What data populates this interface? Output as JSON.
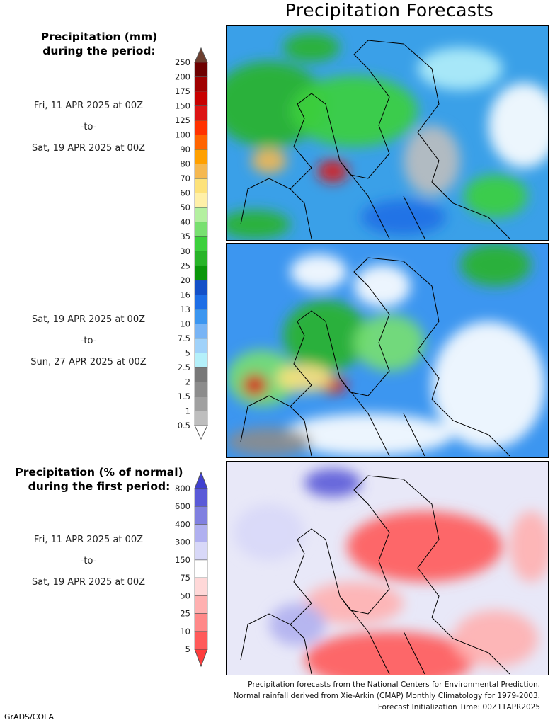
{
  "title": "Precipitation Forecasts",
  "panel1": {
    "header": [
      "Precipitation (mm)",
      "during the period:"
    ],
    "from": "Fri, 11 APR 2025 at 00Z",
    "sep": "-to-",
    "to": "Sat, 19 APR 2025 at 00Z"
  },
  "panel2": {
    "from": "Sat, 19 APR 2025 at 00Z",
    "sep": "-to-",
    "to": "Sun, 27 APR 2025 at 00Z"
  },
  "panel3": {
    "header": [
      "Precipitation (% of normal)",
      "during the first period:"
    ],
    "from": "Fri, 11 APR 2025 at 00Z",
    "sep": "-to-",
    "to": "Sat, 19 APR 2025 at 00Z"
  },
  "colorbar_mm": {
    "labels": [
      "250",
      "200",
      "175",
      "150",
      "125",
      "100",
      "90",
      "80",
      "70",
      "60",
      "50",
      "40",
      "35",
      "30",
      "25",
      "20",
      "16",
      "13",
      "10",
      "7.5",
      "5",
      "2.5",
      "2",
      "1.5",
      "1",
      "0.5"
    ],
    "colors": [
      "#6e0000",
      "#a00000",
      "#c80000",
      "#dc1414",
      "#ff3200",
      "#ff6400",
      "#ffa000",
      "#f5b850",
      "#fde27a",
      "#fff0a8",
      "#b4f0a0",
      "#78e070",
      "#3cd03c",
      "#28b428",
      "#0a960a",
      "#1450c8",
      "#1e6ee6",
      "#3c96f0",
      "#78b4f5",
      "#a0d2fa",
      "#b4f0fa",
      "#787878",
      "#8c8c8c",
      "#a0a0a0",
      "#bebebe"
    ],
    "over_color": "#6e4030",
    "under_color": "#ffffff"
  },
  "colorbar_pct": {
    "labels": [
      "800",
      "600",
      "400",
      "300",
      "150",
      "75",
      "50",
      "25",
      "10",
      "5"
    ],
    "colors": [
      "#5a5ad8",
      "#8080e0",
      "#b0b0f0",
      "#d8d8f8",
      "#ffffff",
      "#ffd8d8",
      "#ffb0b0",
      "#ff8888",
      "#ff5a5a"
    ],
    "over_color": "#4040d0",
    "under_color": "#ff3c3c"
  },
  "footer": [
    "Precipitation forecasts from the National Centers for Environmental Prediction.",
    "Normal rainfall derived from Xie-Arkin (CMAP) Monthly Climatology for 1979-2003.",
    "Forecast Initialization Time: 00Z11APR2025"
  ],
  "credit": "GrADS/COLA"
}
